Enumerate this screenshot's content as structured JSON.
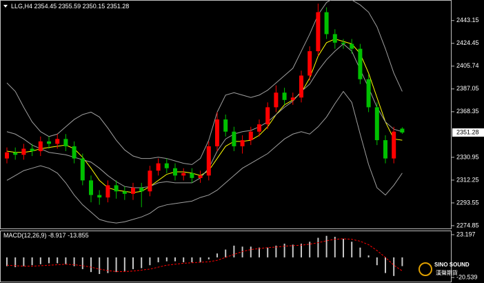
{
  "chart_data": [
    {
      "type": "candlestick",
      "title": "LLG,H4",
      "open": [
        2330,
        2335,
        2333,
        2338,
        2336,
        2344,
        2342,
        2346,
        2340,
        2330,
        2312,
        2300,
        2298,
        2308,
        2303,
        2301,
        2306,
        2303,
        2320,
        2326,
        2322,
        2316,
        2318,
        2314,
        2316,
        2340,
        2362,
        2352,
        2340,
        2345,
        2352,
        2358,
        2372,
        2384,
        2378,
        2380,
        2398,
        2418,
        2450,
        2432,
        2425,
        2424,
        2420,
        2395,
        2372,
        2345,
        2330,
        2354.45
      ],
      "high": [
        2339,
        2339,
        2342,
        2342,
        2348,
        2348,
        2350,
        2350,
        2344,
        2334,
        2316,
        2304,
        2312,
        2312,
        2307,
        2310,
        2310,
        2324,
        2330,
        2330,
        2326,
        2322,
        2322,
        2320,
        2344,
        2368,
        2366,
        2356,
        2349,
        2356,
        2362,
        2376,
        2390,
        2388,
        2384,
        2402,
        2422,
        2457,
        2454,
        2436,
        2428,
        2428,
        2424,
        2399,
        2376,
        2349,
        2356,
        2355.59
      ],
      "low": [
        2326,
        2329,
        2329,
        2332,
        2332,
        2338,
        2338,
        2336,
        2326,
        2308,
        2294,
        2292,
        2294,
        2297,
        2296,
        2296,
        2290,
        2299,
        2316,
        2318,
        2312,
        2312,
        2310,
        2310,
        2312,
        2336,
        2348,
        2336,
        2334,
        2341,
        2348,
        2354,
        2368,
        2374,
        2374,
        2376,
        2394,
        2414,
        2428,
        2420,
        2420,
        2416,
        2391,
        2368,
        2341,
        2326,
        2326,
        2350.15
      ],
      "close": [
        2335,
        2333,
        2338,
        2336,
        2344,
        2342,
        2346,
        2340,
        2330,
        2312,
        2300,
        2298,
        2308,
        2303,
        2301,
        2306,
        2303,
        2320,
        2326,
        2322,
        2316,
        2318,
        2314,
        2316,
        2340,
        2362,
        2352,
        2340,
        2345,
        2352,
        2358,
        2372,
        2384,
        2378,
        2380,
        2398,
        2418,
        2450,
        2432,
        2425,
        2424,
        2420,
        2395,
        2372,
        2345,
        2330,
        2352,
        2351.28
      ],
      "up_color": "#ff0000",
      "down_color": "#00c000",
      "overlays": [
        {
          "color": "#ffff00",
          "values": [
            2336,
            2335,
            2335,
            2336,
            2338,
            2339,
            2340,
            2341,
            2338,
            2331,
            2322,
            2312,
            2306,
            2304,
            2303,
            2302,
            2303,
            2307,
            2312,
            2317,
            2319,
            2319,
            2318,
            2316,
            2320,
            2330,
            2340,
            2344,
            2344,
            2345,
            2349,
            2356,
            2366,
            2374,
            2378,
            2384,
            2396,
            2414,
            2425,
            2428,
            2426,
            2424,
            2416,
            2400,
            2380,
            2360,
            2346,
            2345
          ]
        },
        {
          "color": "#a0a0a0",
          "values": [
            2392,
            2385,
            2372,
            2360,
            2352,
            2348,
            2350,
            2356,
            2362,
            2366,
            2368,
            2364,
            2355,
            2345,
            2337,
            2332,
            2330,
            2330,
            2331,
            2330,
            2328,
            2326,
            2325,
            2330,
            2345,
            2368,
            2382,
            2384,
            2382,
            2380,
            2382,
            2386,
            2392,
            2398,
            2404,
            2418,
            2432,
            2448,
            2458,
            2462,
            2462,
            2460,
            2456,
            2450,
            2438,
            2420,
            2400,
            2385
          ]
        },
        {
          "color": "#a0a0a0",
          "values": [
            2352,
            2350,
            2346,
            2341,
            2338,
            2335,
            2334,
            2333,
            2331,
            2329,
            2327,
            2322,
            2316,
            2311,
            2307,
            2306,
            2306,
            2307,
            2310,
            2311,
            2310,
            2310,
            2310,
            2314,
            2322,
            2336,
            2346,
            2350,
            2352,
            2353,
            2356,
            2360,
            2366,
            2372,
            2377,
            2385,
            2391,
            2402,
            2411,
            2418,
            2424,
            2418,
            2403,
            2388,
            2372,
            2360,
            2354,
            2352
          ]
        },
        {
          "color": "#a0a0a0",
          "values": [
            2312,
            2316,
            2320,
            2322,
            2324,
            2322,
            2318,
            2310,
            2300,
            2292,
            2286,
            2280,
            2278,
            2277,
            2278,
            2280,
            2282,
            2285,
            2290,
            2292,
            2293,
            2294,
            2295,
            2298,
            2300,
            2304,
            2310,
            2316,
            2322,
            2326,
            2330,
            2334,
            2340,
            2346,
            2350,
            2352,
            2350,
            2356,
            2364,
            2375,
            2385,
            2376,
            2350,
            2325,
            2306,
            2300,
            2308,
            2318
          ]
        }
      ],
      "ylim": [
        2272,
        2460
      ],
      "yticks": [
        2443.15,
        2424.45,
        2405.74,
        2387.05,
        2368.35,
        2330.95,
        2312.25,
        2293.55,
        2274.85
      ]
    },
    {
      "type": "macd",
      "title": "MACD(12,26,9)",
      "series": [
        {
          "color": "#c8c8c8",
          "values": [
            -9,
            -10,
            -9,
            -8,
            -7,
            -6,
            -6,
            -7,
            -9,
            -12,
            -15,
            -17,
            -16,
            -15,
            -14,
            -12,
            -11,
            -8,
            -5,
            -4,
            -4,
            -5,
            -5,
            -5,
            -2,
            4,
            8,
            12,
            11,
            11,
            10,
            10,
            12,
            14,
            13,
            14,
            16,
            20,
            22,
            21,
            19,
            16,
            10,
            2,
            -8,
            -16,
            -19,
            -8.917
          ]
        },
        {
          "color": "#ff0000",
          "dashed": true,
          "values": [
            -8,
            -8.5,
            -9,
            -9,
            -8.5,
            -8,
            -7.5,
            -7,
            -7.5,
            -8.5,
            -10,
            -12,
            -13.5,
            -14.5,
            -14.5,
            -14,
            -13,
            -12,
            -10,
            -8,
            -7,
            -6,
            -5.5,
            -5,
            -4.5,
            -3,
            0,
            3,
            6,
            8,
            9,
            10,
            10.5,
            11.5,
            12,
            12.5,
            13.5,
            15,
            17,
            18.5,
            19,
            18.5,
            16.5,
            13,
            7,
            0,
            -8,
            -13.855
          ]
        }
      ],
      "ylim": [
        -20.539,
        23.197
      ],
      "yticks": [
        23.197,
        -20.539
      ]
    }
  ],
  "watermark": {
    "brand": "SINO SOUND",
    "subtitle": "漢聲期貨"
  }
}
